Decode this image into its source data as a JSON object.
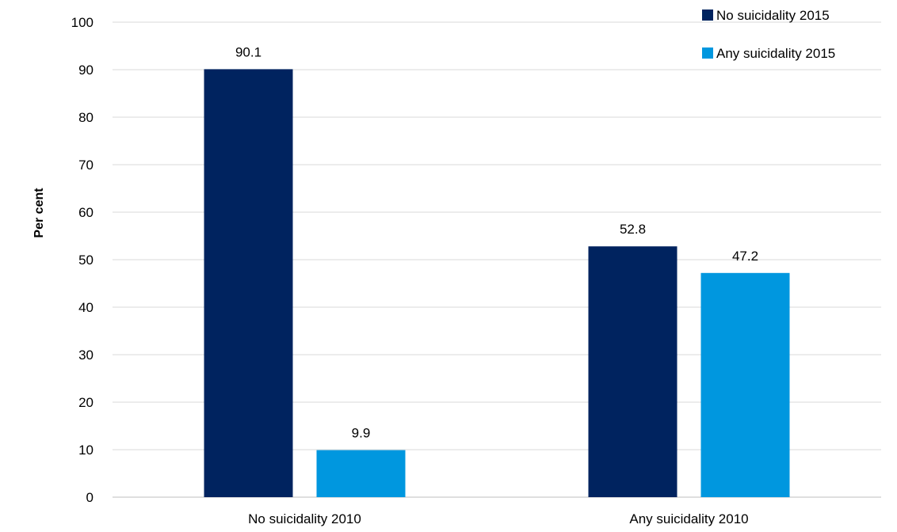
{
  "chart_data": {
    "type": "bar",
    "title": "",
    "xlabel": "",
    "ylabel": "Per cent",
    "ylim": [
      0,
      100
    ],
    "yticks": [
      0,
      10,
      20,
      30,
      40,
      50,
      60,
      70,
      80,
      90,
      100
    ],
    "grid": true,
    "legend_position": "top-right",
    "categories": [
      "No suicidality 2010",
      "Any suicidality 2010"
    ],
    "series": [
      {
        "name": "No suicidality 2015",
        "color": "#00235f",
        "values": [
          90.1,
          52.8
        ],
        "labels": [
          "90.1",
          "52.8"
        ]
      },
      {
        "name": "Any suicidality 2015",
        "color": "#0097df",
        "values": [
          9.9,
          47.2
        ],
        "labels": [
          "9.9",
          "47.2"
        ]
      }
    ]
  }
}
